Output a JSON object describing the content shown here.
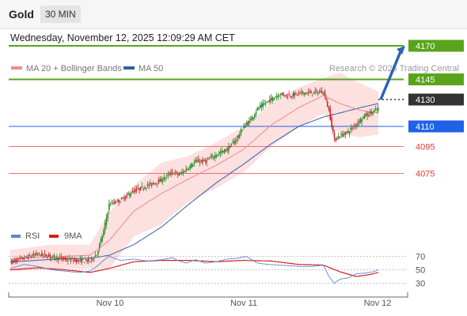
{
  "header": {
    "symbol": "Gold",
    "timeframe": "30 MIN",
    "datetime": "Wednesday, November 12, 2025 12:09:29 AM CET"
  },
  "legend": {
    "items": [
      {
        "label": "MA 20 + Bollinger Bands",
        "color": "#f08a8a"
      },
      {
        "label": "MA 50",
        "color": "#2d5fa8"
      }
    ],
    "credit": "Research © 2025 Trading Central"
  },
  "colors": {
    "candle_up": "#2e8b2e",
    "candle_down": "#c62828",
    "ma20": "#f08a8a",
    "ma50": "#2d5fa8",
    "band_fill": "#fde0e0",
    "resistance": "#5aa41b",
    "pivot": "#1f62e6",
    "support": "#ee7070",
    "last_price": "#333333",
    "arrow": "#2b63b8",
    "rsi": "#5b86d8",
    "rsi_ma": "#d81e1e"
  },
  "chart_data": [
    {
      "type": "candlestick",
      "instrument": "Gold",
      "timeframe": "30 MIN",
      "x_ticks": [
        "Nov 10",
        "Nov 11",
        "Nov 12"
      ],
      "ylim": [
        4010,
        4180
      ],
      "last_price": 4130,
      "levels": [
        {
          "value": 4170,
          "label": "4170",
          "kind": "resistance"
        },
        {
          "value": 4145,
          "label": "4145",
          "kind": "resistance"
        },
        {
          "value": 4110,
          "label": "4110",
          "kind": "pivot"
        },
        {
          "value": 4095,
          "label": "4095",
          "kind": "support"
        },
        {
          "value": 4075,
          "label": "4075",
          "kind": "support"
        }
      ],
      "expected_move": {
        "from": 4130,
        "to": 4170
      },
      "close_path": [
        [
          0,
          4009
        ],
        [
          10,
          4012
        ],
        [
          20,
          4015
        ],
        [
          30,
          4013
        ],
        [
          40,
          4011
        ],
        [
          50,
          4010
        ],
        [
          58,
          4010
        ],
        [
          63,
          4015
        ],
        [
          68,
          4032
        ],
        [
          72,
          4052
        ],
        [
          80,
          4055
        ],
        [
          90,
          4062
        ],
        [
          100,
          4066
        ],
        [
          110,
          4070
        ],
        [
          118,
          4076
        ],
        [
          123,
          4074
        ],
        [
          128,
          4078
        ],
        [
          135,
          4084
        ],
        [
          142,
          4084
        ],
        [
          150,
          4089
        ],
        [
          158,
          4093
        ],
        [
          165,
          4101
        ],
        [
          170,
          4110
        ],
        [
          175,
          4115
        ],
        [
          180,
          4123
        ],
        [
          188,
          4129
        ],
        [
          196,
          4134
        ],
        [
          204,
          4133
        ],
        [
          212,
          4135
        ],
        [
          220,
          4135
        ],
        [
          228,
          4136
        ],
        [
          232,
          4122
        ],
        [
          236,
          4100
        ],
        [
          240,
          4103
        ],
        [
          246,
          4106
        ],
        [
          252,
          4112
        ],
        [
          258,
          4118
        ],
        [
          264,
          4121
        ],
        [
          268,
          4123
        ]
      ],
      "ma20": [
        [
          0,
          4011
        ],
        [
          30,
          4013
        ],
        [
          58,
          4014
        ],
        [
          72,
          4025
        ],
        [
          90,
          4047
        ],
        [
          110,
          4060
        ],
        [
          130,
          4071
        ],
        [
          150,
          4081
        ],
        [
          170,
          4093
        ],
        [
          190,
          4111
        ],
        [
          210,
          4124
        ],
        [
          228,
          4133
        ],
        [
          240,
          4127
        ],
        [
          255,
          4122
        ],
        [
          268,
          4120
        ]
      ],
      "ma50": [
        [
          0,
          4009
        ],
        [
          30,
          4011
        ],
        [
          58,
          4012
        ],
        [
          72,
          4014
        ],
        [
          90,
          4022
        ],
        [
          110,
          4035
        ],
        [
          130,
          4052
        ],
        [
          150,
          4068
        ],
        [
          170,
          4082
        ],
        [
          190,
          4097
        ],
        [
          210,
          4110
        ],
        [
          228,
          4117
        ],
        [
          240,
          4120
        ],
        [
          255,
          4124
        ],
        [
          268,
          4127
        ]
      ],
      "bollinger_upper": [
        [
          0,
          4018
        ],
        [
          30,
          4022
        ],
        [
          58,
          4022
        ],
        [
          72,
          4046
        ],
        [
          90,
          4066
        ],
        [
          110,
          4083
        ],
        [
          130,
          4088
        ],
        [
          150,
          4098
        ],
        [
          170,
          4110
        ],
        [
          190,
          4127
        ],
        [
          210,
          4139
        ],
        [
          228,
          4146
        ],
        [
          240,
          4150
        ],
        [
          255,
          4142
        ],
        [
          268,
          4136
        ]
      ],
      "bollinger_lower": [
        [
          0,
          4002
        ],
        [
          30,
          4004
        ],
        [
          58,
          4004
        ],
        [
          72,
          4004
        ],
        [
          90,
          4028
        ],
        [
          110,
          4037
        ],
        [
          130,
          4054
        ],
        [
          150,
          4064
        ],
        [
          170,
          4076
        ],
        [
          190,
          4095
        ],
        [
          210,
          4109
        ],
        [
          228,
          4120
        ],
        [
          240,
          4104
        ],
        [
          255,
          4102
        ],
        [
          268,
          4104
        ]
      ]
    },
    {
      "type": "line",
      "legend": [
        "RSI",
        "9MA"
      ],
      "ylim": [
        20,
        80
      ],
      "ticks": [
        70,
        50,
        30
      ],
      "x_ticks": [
        "Nov 10",
        "Nov 11",
        "Nov 12"
      ],
      "series": [
        {
          "name": "RSI",
          "color": "#5b86d8",
          "points": [
            [
              0,
              52
            ],
            [
              10,
              58
            ],
            [
              20,
              55
            ],
            [
              30,
              50
            ],
            [
              40,
              48
            ],
            [
              50,
              46
            ],
            [
              58,
              48
            ],
            [
              63,
              55
            ],
            [
              68,
              64
            ],
            [
              72,
              70
            ],
            [
              80,
              64
            ],
            [
              90,
              66
            ],
            [
              100,
              63
            ],
            [
              110,
              65
            ],
            [
              118,
              68
            ],
            [
              123,
              63
            ],
            [
              128,
              60
            ],
            [
              135,
              65
            ],
            [
              142,
              60
            ],
            [
              150,
              62
            ],
            [
              158,
              66
            ],
            [
              165,
              67
            ],
            [
              172,
              70
            ],
            [
              180,
              60
            ],
            [
              188,
              58
            ],
            [
              196,
              57
            ],
            [
              204,
              56
            ],
            [
              212,
              55
            ],
            [
              220,
              55
            ],
            [
              228,
              57
            ],
            [
              232,
              40
            ],
            [
              236,
              30
            ],
            [
              240,
              36
            ],
            [
              246,
              38
            ],
            [
              252,
              44
            ],
            [
              258,
              45
            ],
            [
              264,
              47
            ],
            [
              268,
              50
            ]
          ]
        },
        {
          "name": "9MA",
          "color": "#d81e1e",
          "points": [
            [
              0,
              50
            ],
            [
              20,
              53
            ],
            [
              40,
              50
            ],
            [
              58,
              46
            ],
            [
              72,
              52
            ],
            [
              90,
              62
            ],
            [
              110,
              64
            ],
            [
              130,
              64
            ],
            [
              150,
              62
            ],
            [
              170,
              64
            ],
            [
              190,
              63
            ],
            [
              210,
              58
            ],
            [
              228,
              57
            ],
            [
              240,
              47
            ],
            [
              252,
              40
            ],
            [
              262,
              43
            ],
            [
              268,
              46
            ]
          ]
        }
      ]
    }
  ]
}
